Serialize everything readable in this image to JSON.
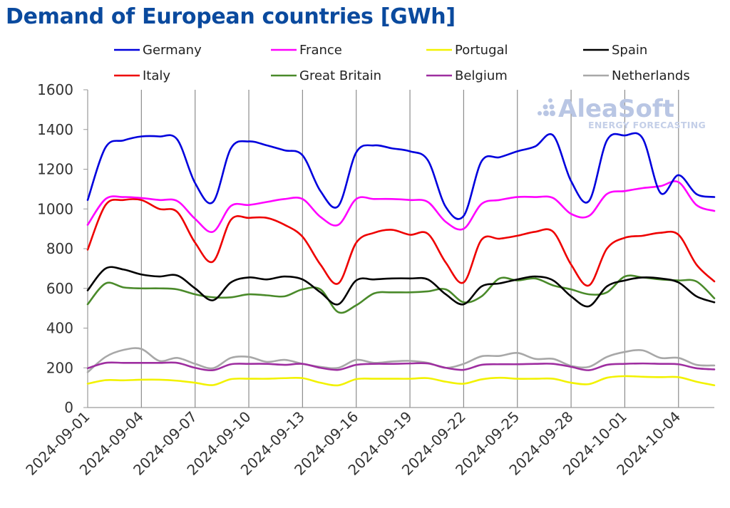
{
  "title": "Demand of European countries [GWh]",
  "watermark": {
    "main": "AleaSoft",
    "sub": "ENERGY FORECASTING"
  },
  "chart_data": {
    "type": "line",
    "title": "Demand of European countries [GWh]",
    "xlabel": "",
    "ylabel": "",
    "ylim": [
      0,
      1600
    ],
    "yticks": [
      0,
      200,
      400,
      600,
      800,
      1000,
      1200,
      1400,
      1600
    ],
    "grid": "vertical every 3 days",
    "legend_position": "top",
    "x": [
      "2024-09-01",
      "2024-09-02",
      "2024-09-03",
      "2024-09-04",
      "2024-09-05",
      "2024-09-06",
      "2024-09-07",
      "2024-09-08",
      "2024-09-09",
      "2024-09-10",
      "2024-09-11",
      "2024-09-12",
      "2024-09-13",
      "2024-09-14",
      "2024-09-15",
      "2024-09-16",
      "2024-09-17",
      "2024-09-18",
      "2024-09-19",
      "2024-09-20",
      "2024-09-21",
      "2024-09-22",
      "2024-09-23",
      "2024-09-24",
      "2024-09-25",
      "2024-09-26",
      "2024-09-27",
      "2024-09-28",
      "2024-09-29",
      "2024-09-30",
      "2024-10-01",
      "2024-10-02",
      "2024-10-03",
      "2024-10-04",
      "2024-10-05",
      "2024-10-06"
    ],
    "xtick_labels": [
      "2024-09-01",
      "2024-09-04",
      "2024-09-07",
      "2024-09-10",
      "2024-09-13",
      "2024-09-16",
      "2024-09-19",
      "2024-09-22",
      "2024-09-25",
      "2024-09-28",
      "2024-10-01",
      "2024-10-04"
    ],
    "series": [
      {
        "name": "Germany",
        "color": "#0000dd",
        "values": [
          1045,
          1310,
          1345,
          1365,
          1365,
          1350,
          1130,
          1035,
          1305,
          1340,
          1320,
          1295,
          1270,
          1090,
          1015,
          1285,
          1320,
          1305,
          1290,
          1245,
          1010,
          965,
          1240,
          1260,
          1290,
          1315,
          1370,
          1140,
          1040,
          1345,
          1370,
          1355,
          1080,
          1170,
          1075,
          1060
        ]
      },
      {
        "name": "France",
        "color": "#ff00ff",
        "values": [
          920,
          1050,
          1060,
          1055,
          1045,
          1040,
          950,
          885,
          1015,
          1020,
          1035,
          1050,
          1050,
          960,
          920,
          1050,
          1050,
          1050,
          1045,
          1035,
          935,
          900,
          1025,
          1045,
          1060,
          1060,
          1055,
          975,
          965,
          1075,
          1090,
          1105,
          1115,
          1135,
          1020,
          990
        ]
      },
      {
        "name": "Portugal",
        "color": "#f2f200",
        "values": [
          120,
          138,
          137,
          140,
          140,
          135,
          125,
          113,
          143,
          145,
          145,
          148,
          148,
          125,
          112,
          143,
          145,
          145,
          145,
          148,
          130,
          120,
          142,
          150,
          145,
          145,
          145,
          125,
          118,
          150,
          158,
          155,
          153,
          153,
          130,
          112
        ]
      },
      {
        "name": "Spain",
        "color": "#000000",
        "values": [
          590,
          700,
          695,
          670,
          660,
          665,
          600,
          540,
          630,
          655,
          645,
          660,
          645,
          580,
          520,
          640,
          645,
          650,
          650,
          645,
          570,
          520,
          610,
          625,
          645,
          660,
          640,
          560,
          510,
          610,
          640,
          655,
          650,
          630,
          560,
          530
        ]
      },
      {
        "name": "Italy",
        "color": "#ee0000",
        "values": [
          795,
          1020,
          1045,
          1045,
          1000,
          985,
          830,
          735,
          945,
          955,
          955,
          920,
          860,
          720,
          625,
          830,
          880,
          895,
          870,
          875,
          730,
          630,
          845,
          850,
          865,
          885,
          885,
          720,
          615,
          800,
          855,
          865,
          880,
          870,
          720,
          635
        ]
      },
      {
        "name": "Great Britain",
        "color": "#4a8a2a",
        "values": [
          520,
          625,
          605,
          600,
          600,
          595,
          570,
          555,
          555,
          570,
          565,
          560,
          595,
          595,
          480,
          515,
          575,
          580,
          580,
          585,
          595,
          530,
          560,
          650,
          640,
          650,
          615,
          595,
          570,
          580,
          660,
          655,
          645,
          640,
          635,
          550
        ]
      },
      {
        "name": "Belgium",
        "color": "#9e2ea0",
        "values": [
          198,
          225,
          225,
          225,
          225,
          225,
          200,
          188,
          218,
          220,
          220,
          215,
          220,
          200,
          190,
          215,
          220,
          220,
          222,
          222,
          200,
          190,
          215,
          218,
          218,
          220,
          220,
          205,
          188,
          215,
          220,
          222,
          220,
          218,
          198,
          192
        ]
      },
      {
        "name": "Netherlands",
        "color": "#a8a8a8",
        "values": [
          178,
          255,
          290,
          295,
          235,
          250,
          220,
          198,
          250,
          255,
          230,
          240,
          220,
          205,
          200,
          240,
          225,
          232,
          235,
          225,
          200,
          220,
          258,
          260,
          275,
          245,
          245,
          210,
          205,
          255,
          280,
          288,
          250,
          250,
          215,
          212
        ]
      }
    ]
  }
}
